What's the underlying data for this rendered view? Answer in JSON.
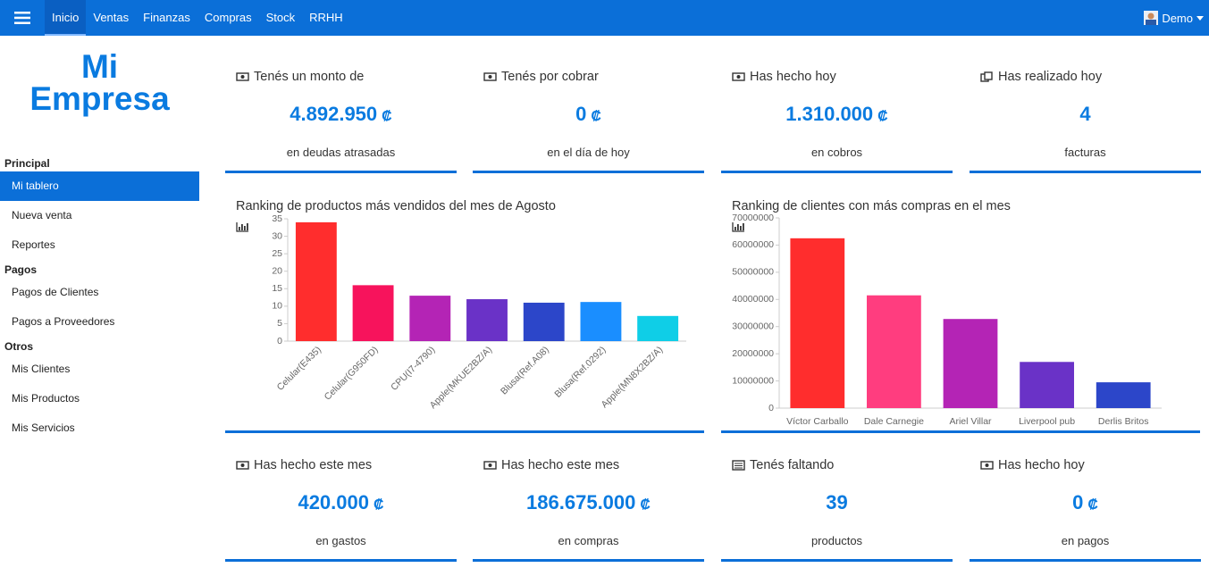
{
  "nav": {
    "items": [
      "Inicio",
      "Ventas",
      "Finanzas",
      "Compras",
      "Stock",
      "RRHH"
    ],
    "user": "Demo"
  },
  "brand": "Mi Empresa",
  "sidebar": [
    {
      "title": "Principal",
      "items": [
        "Mi tablero",
        "Nueva venta",
        "Reportes"
      ]
    },
    {
      "title": "Pagos",
      "items": [
        "Pagos de Clientes",
        "Pagos a Proveedores"
      ]
    },
    {
      "title": "Otros",
      "items": [
        "Mis Clientes",
        "Mis Productos",
        "Mis Servicios"
      ]
    }
  ],
  "cards": [
    {
      "title": "Tenés un monto de",
      "value": "4.892.950",
      "unit": "₡",
      "caption": "en deudas atrasadas"
    },
    {
      "title": "Tenés por cobrar",
      "value": "0",
      "unit": "₡",
      "caption": "en el día de hoy"
    },
    {
      "title": "Has hecho hoy",
      "value": "1.310.000",
      "unit": "₡",
      "caption": "en cobros"
    },
    {
      "title": "Has realizado hoy",
      "value": "4",
      "caption": "facturas"
    },
    {
      "title": "Has hecho este mes",
      "value": "420.000",
      "unit": "₡",
      "caption": "en gastos"
    },
    {
      "title": "Has hecho este mes",
      "value": "186.675.000",
      "unit": "₡",
      "caption": "en compras"
    },
    {
      "title": "Tenés faltando",
      "value": "39",
      "caption": "productos"
    },
    {
      "title": "Has hecho hoy",
      "value": "0",
      "unit": "₡",
      "caption": "en pagos"
    }
  ],
  "chart_data": [
    {
      "type": "bar",
      "title": "Ranking de productos más vendidos del mes de Agosto",
      "categories": [
        "Celular(E435)",
        "Celular(G950FD)",
        "CPU(I7-4790)",
        "Apple(MKUE2BZ/A)",
        "Blusa(Ref.A08)",
        "Blusa(Ref.0292)",
        "Apple(MN8X2BZ/A)"
      ],
      "values": [
        34,
        16,
        13,
        12,
        11,
        11.2,
        7.2
      ],
      "colors": [
        "#ff2d2d",
        "#f7135c",
        "#b424b5",
        "#6a32c7",
        "#2c46c9",
        "#1a8eff",
        "#0fcee7"
      ],
      "ylim": [
        0,
        35
      ],
      "yticks": [
        0,
        5,
        10,
        15,
        20,
        25,
        30,
        35
      ],
      "label_rotation": -45,
      "grid": false
    },
    {
      "type": "bar",
      "title": "Ranking de clientes con más compras en el mes",
      "categories": [
        "Víctor Carballo",
        "Dale Carnegie",
        "Ariel Villar",
        "Liverpool pub",
        "Derlis Britos"
      ],
      "values": [
        62500000,
        41500000,
        32800000,
        17000000,
        9500000
      ],
      "colors": [
        "#ff2d2d",
        "#ff3d7f",
        "#b424b5",
        "#6a32c7",
        "#2c46c9"
      ],
      "ylim": [
        0,
        70000000
      ],
      "yticks": [
        0,
        10000000,
        20000000,
        30000000,
        40000000,
        50000000,
        60000000,
        70000000
      ],
      "label_rotation": 0,
      "grid": false
    }
  ]
}
